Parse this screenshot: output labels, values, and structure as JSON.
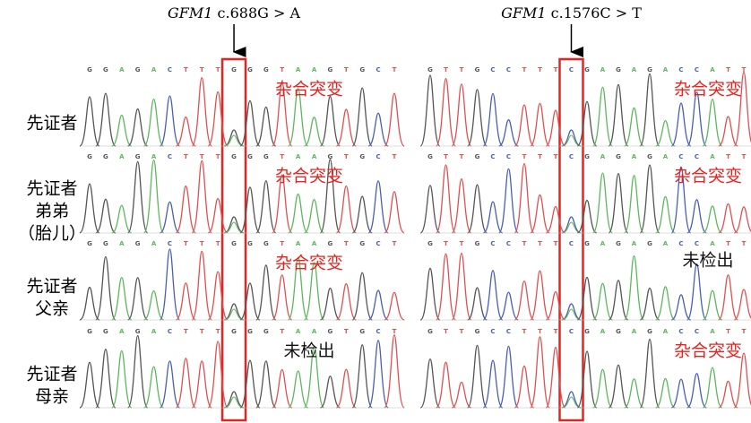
{
  "figure": {
    "panels": [
      {
        "gene": "GFM1",
        "variant": " c.688G > A",
        "bases": [
          "G",
          "G",
          "A",
          "G",
          "A",
          "C",
          "T",
          "T",
          "T",
          "G",
          "G",
          "G",
          "T",
          "A",
          "A",
          "G",
          "T",
          "G",
          "C",
          "T"
        ],
        "variant_index": 9,
        "results": [
          {
            "text": "杂合突变",
            "color": "#e8231f"
          },
          {
            "text": "杂合突变",
            "color": "#e8231f"
          },
          {
            "text": "杂合突变",
            "color": "#e8231f"
          },
          {
            "text": "未检出",
            "color": "#111111"
          }
        ]
      },
      {
        "gene": "GFM1",
        "variant": " c.1576C > T",
        "bases": [
          "G",
          "T",
          "T",
          "G",
          "C",
          "C",
          "T",
          "T",
          "T",
          "C",
          "G",
          "A",
          "G",
          "A",
          "G",
          "A",
          "C",
          "C",
          "A",
          "T",
          "T"
        ],
        "variant_index": 9,
        "results": [
          {
            "text": "杂合突变",
            "color": "#e8231f"
          },
          {
            "text": "杂合突变",
            "color": "#e8231f"
          },
          {
            "text": "未检出",
            "color": "#111111"
          },
          {
            "text": "杂合突变",
            "color": "#e8231f"
          }
        ]
      }
    ],
    "rows": [
      {
        "lines": [
          "先证者"
        ]
      },
      {
        "lines": [
          "先证者",
          "弟弟",
          "（胎儿）"
        ]
      },
      {
        "lines": [
          "先证者",
          "父亲"
        ]
      },
      {
        "lines": [
          "先证者",
          "母亲"
        ]
      }
    ],
    "base_colors": {
      "G": "#555555",
      "A": "#5cb85c",
      "T": "#e05050",
      "C": "#4a5fb0"
    }
  }
}
